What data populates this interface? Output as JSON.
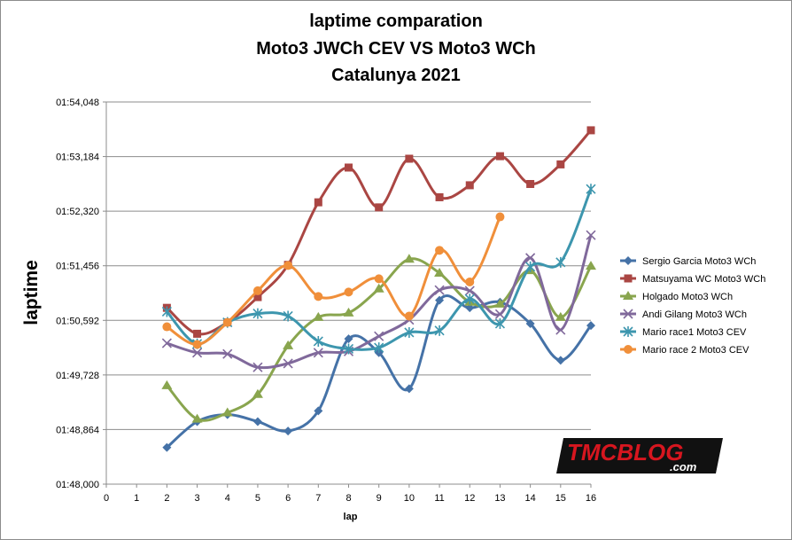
{
  "chart_data": {
    "type": "line",
    "title_lines": [
      "laptime comparation",
      "Moto3 JWCh CEV VS Moto3 WCh",
      "Catalunya 2021"
    ],
    "xlabel": "lap",
    "ylabel": "laptime",
    "x_ticks": [
      "0",
      "1",
      "2",
      "3",
      "4",
      "5",
      "6",
      "7",
      "8",
      "9",
      "10",
      "11",
      "12",
      "13",
      "14",
      "15",
      "16"
    ],
    "xlim": [
      0,
      16
    ],
    "y_ticks": [
      "01:48,000",
      "01:48,864",
      "01:49,728",
      "01:50,592",
      "01:51,456",
      "01:52,320",
      "01:53,184",
      "01:54,048"
    ],
    "ylim": [
      108.0,
      114.048
    ],
    "grid": true,
    "legend_position": "right",
    "series": [
      {
        "name": "Sergio Garcia Moto3  WCh",
        "color": "#4572A7",
        "marker": "diamond",
        "x": [
          2,
          3,
          4,
          5,
          6,
          7,
          8,
          9,
          10,
          11,
          12,
          13,
          14,
          15,
          16
        ],
        "y": [
          108.58,
          108.99,
          109.1,
          108.99,
          108.84,
          109.16,
          110.3,
          110.08,
          109.51,
          110.91,
          110.79,
          110.88,
          110.54,
          109.96,
          110.51
        ]
      },
      {
        "name": "Matsuyama  WC Moto3  WCh",
        "color": "#AA4643",
        "marker": "square",
        "x": [
          2,
          3,
          4,
          5,
          6,
          7,
          8,
          9,
          10,
          11,
          12,
          13,
          14,
          15,
          16
        ],
        "y": [
          110.79,
          110.38,
          110.56,
          110.96,
          111.47,
          112.46,
          113.01,
          112.38,
          113.15,
          112.54,
          112.73,
          113.19,
          112.75,
          113.06,
          113.6
        ]
      },
      {
        "name": "Holgado Moto3  WCh",
        "color": "#89A54E",
        "marker": "triangle",
        "x": [
          2,
          3,
          4,
          5,
          6,
          7,
          8,
          9,
          10,
          11,
          12,
          13,
          14,
          15,
          16
        ],
        "y": [
          109.56,
          109.03,
          109.13,
          109.42,
          110.19,
          110.64,
          110.71,
          111.09,
          111.56,
          111.34,
          110.88,
          110.85,
          111.38,
          110.64,
          111.45
        ]
      },
      {
        "name": "Andi Gilang Moto3  WCh",
        "color": "#80699B",
        "marker": "x",
        "x": [
          2,
          3,
          4,
          5,
          6,
          7,
          8,
          9,
          10,
          11,
          12,
          13,
          14,
          15,
          16
        ],
        "y": [
          110.23,
          110.08,
          110.06,
          109.85,
          109.91,
          110.08,
          110.1,
          110.34,
          110.6,
          111.07,
          111.06,
          110.69,
          111.58,
          110.44,
          111.94
        ]
      },
      {
        "name": "Mario race1 Moto3 CEV",
        "color": "#3D96AE",
        "marker": "star",
        "x": [
          2,
          3,
          4,
          5,
          6,
          7,
          8,
          9,
          10,
          11,
          12,
          13,
          14,
          15,
          16
        ],
        "y": [
          110.73,
          110.22,
          110.56,
          110.7,
          110.66,
          110.26,
          110.14,
          110.16,
          110.4,
          110.43,
          110.93,
          110.54,
          111.44,
          111.51,
          112.67
        ]
      },
      {
        "name": "Mario race 2 Moto3 CEV",
        "color": "#F08F3A",
        "marker": "circle",
        "x": [
          2,
          3,
          4,
          5,
          6,
          7,
          8,
          9,
          10,
          11,
          12,
          13
        ],
        "y": [
          110.49,
          110.21,
          110.56,
          111.06,
          111.46,
          110.97,
          111.04,
          111.25,
          110.66,
          111.7,
          111.2,
          112.23
        ]
      }
    ]
  },
  "logo": {
    "text": "TMCBLOG",
    "suffix": ".com",
    "main_color": "#d7161f"
  }
}
